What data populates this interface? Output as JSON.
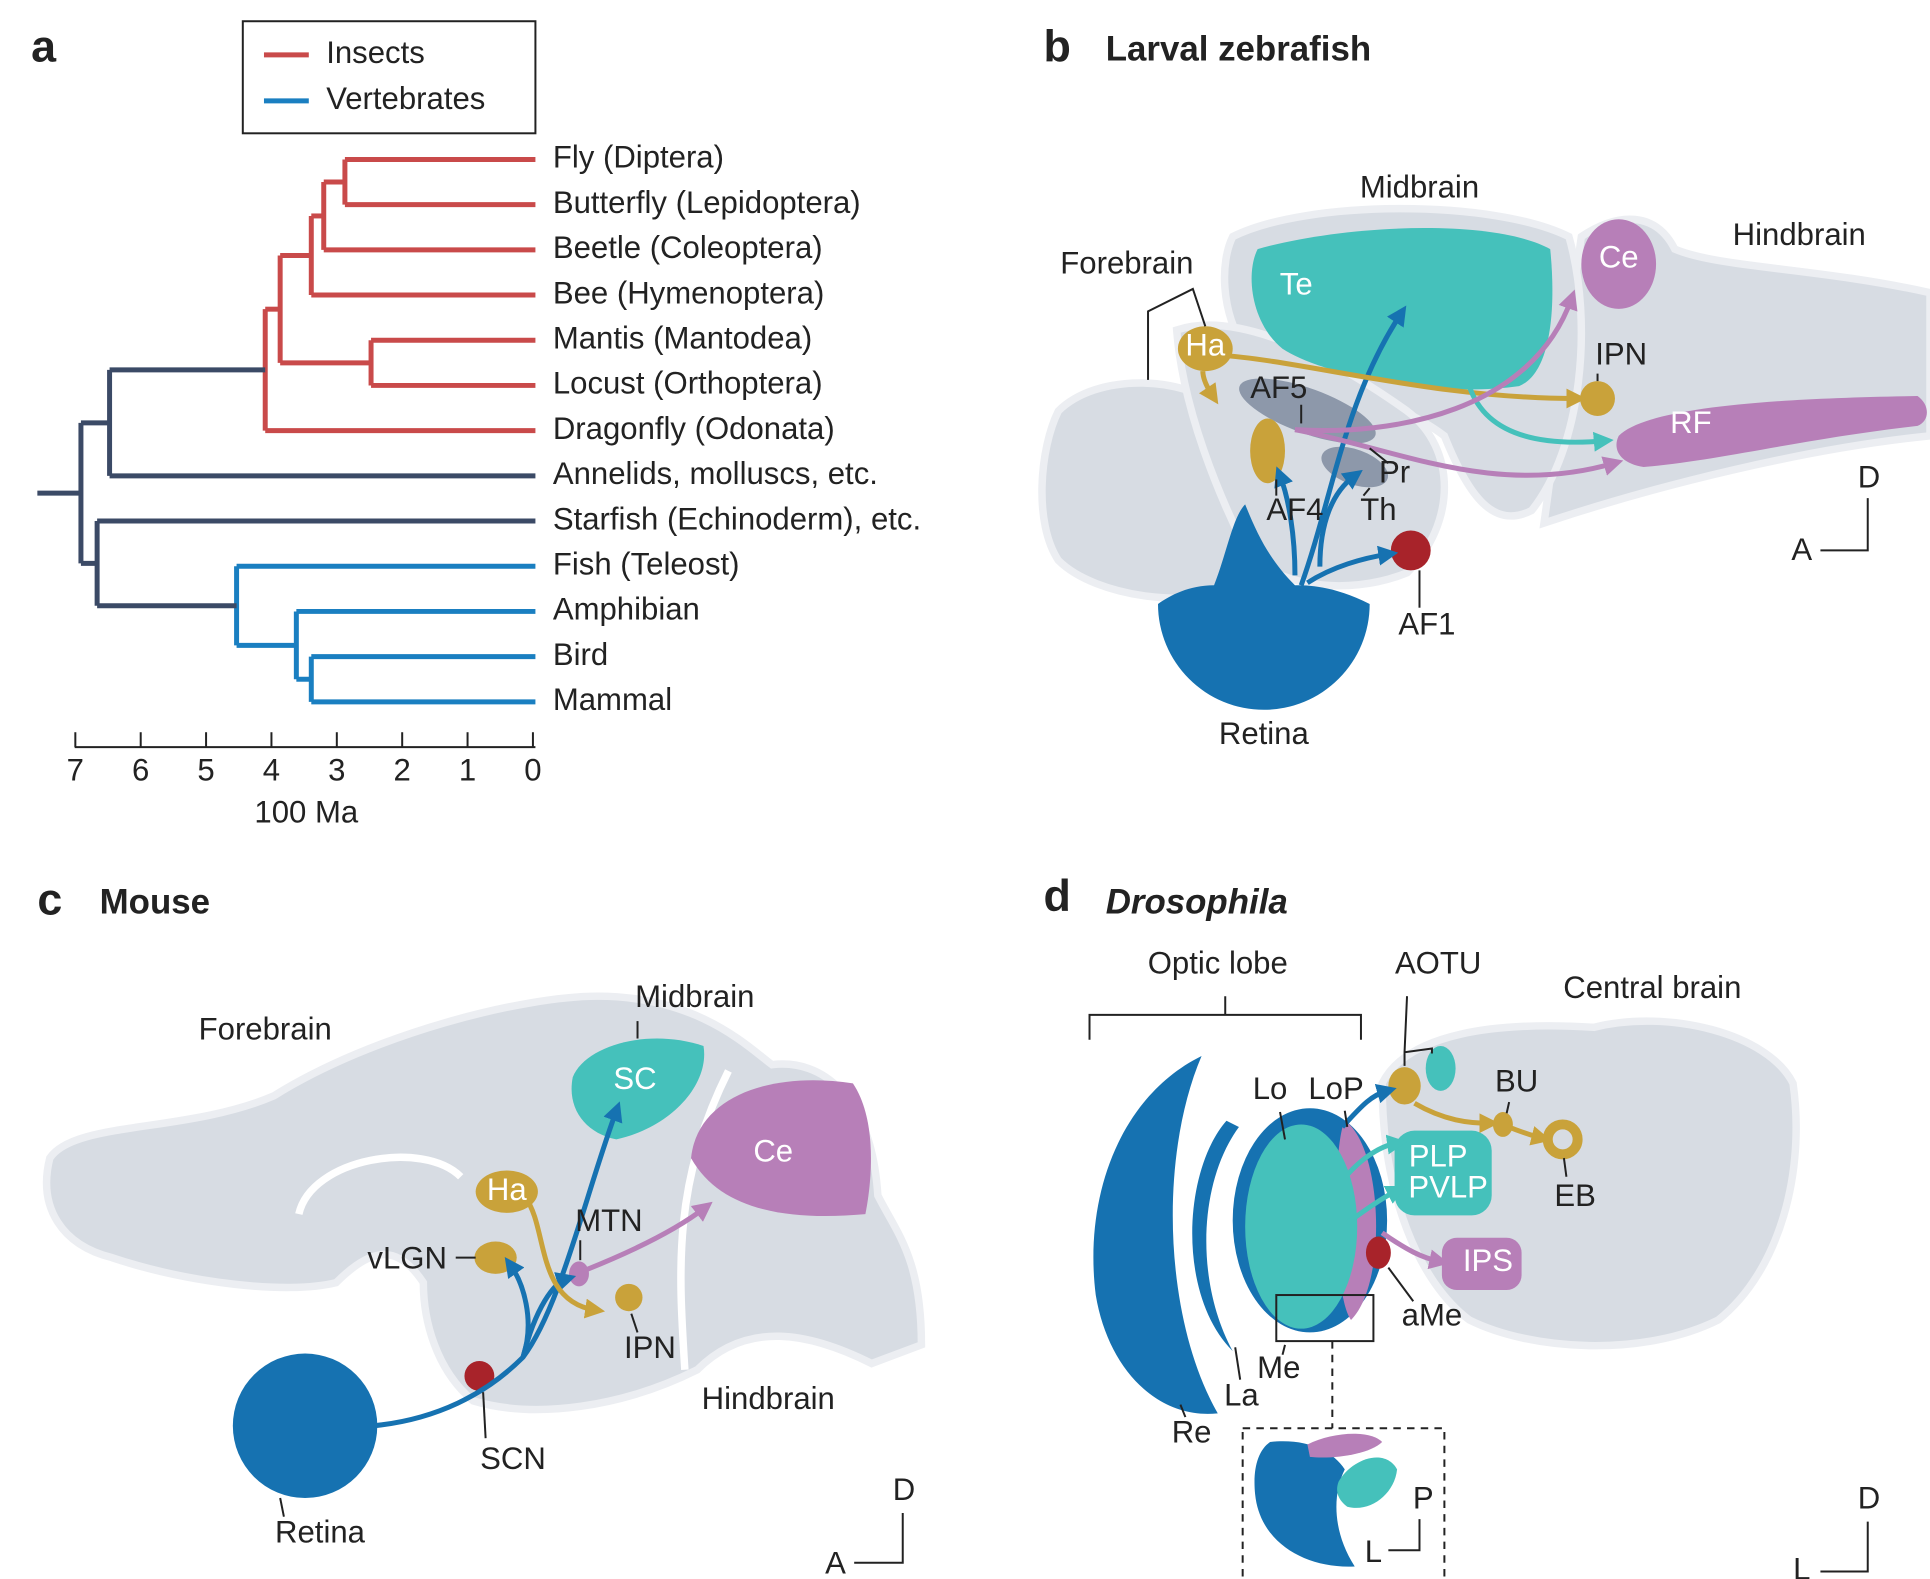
{
  "panel_a": {
    "letter": "a",
    "legend": [
      {
        "name": "Insects",
        "color": "#c94a4a"
      },
      {
        "name": "Vertebrates",
        "color": "#1a7fc1"
      }
    ],
    "taxa": [
      "Fly (Diptera)",
      "Butterfly (Lepidoptera)",
      "Beetle (Coleoptera)",
      "Bee (Hymenoptera)",
      "Mantis (Mantodea)",
      "Locust (Orthoptera)",
      "Dragonfly (Odonata)",
      "Annelids, molluscs, etc.",
      "Starfish (Echinoderm), etc.",
      "Fish (Teleost)",
      "Amphibian",
      "Bird",
      "Mammal"
    ],
    "axis": {
      "ticks": [
        7,
        6,
        5,
        4,
        3,
        2,
        1,
        0
      ],
      "label": "100 Ma"
    }
  },
  "panel_b": {
    "letter": "b",
    "title": "Larval zebrafish",
    "regions": {
      "midbrain": "Midbrain",
      "forebrain": "Forebrain",
      "hindbrain": "Hindbrain"
    },
    "structures": {
      "te": "Te",
      "ce": "Ce",
      "ha": "Ha",
      "ipn": "IPN",
      "af5": "AF5",
      "rf": "RF",
      "pr": "Pr",
      "af4": "AF4",
      "th": "Th",
      "af1": "AF1",
      "retina": "Retina"
    },
    "axes": {
      "dorsal": "D",
      "anterior": "A"
    }
  },
  "panel_c": {
    "letter": "c",
    "title": "Mouse",
    "regions": {
      "forebrain": "Forebrain",
      "midbrain": "Midbrain",
      "hindbrain": "Hindbrain"
    },
    "structures": {
      "sc": "SC",
      "ce": "Ce",
      "ha": "Ha",
      "mtn": "MTN",
      "vlgn": "vLGN",
      "ipn": "IPN",
      "scn": "SCN",
      "retina": "Retina"
    },
    "axes": {
      "dorsal": "D",
      "anterior": "A"
    }
  },
  "panel_d": {
    "letter": "d",
    "title": "Drosophila",
    "regions": {
      "optic_lobe": "Optic lobe",
      "central_brain": "Central brain"
    },
    "structures": {
      "aotu": "AOTU",
      "lo": "Lo",
      "lop": "LoP",
      "bu": "BU",
      "plp": "PLP",
      "pvlp": "PVLP",
      "eb": "EB",
      "ips": "IPS",
      "ame": "aMe",
      "me": "Me",
      "la": "La",
      "re": "Re"
    },
    "inset": {
      "posterior": "P",
      "lateral": "L"
    },
    "axes": {
      "dorsal": "D",
      "lateral": "L"
    }
  }
}
